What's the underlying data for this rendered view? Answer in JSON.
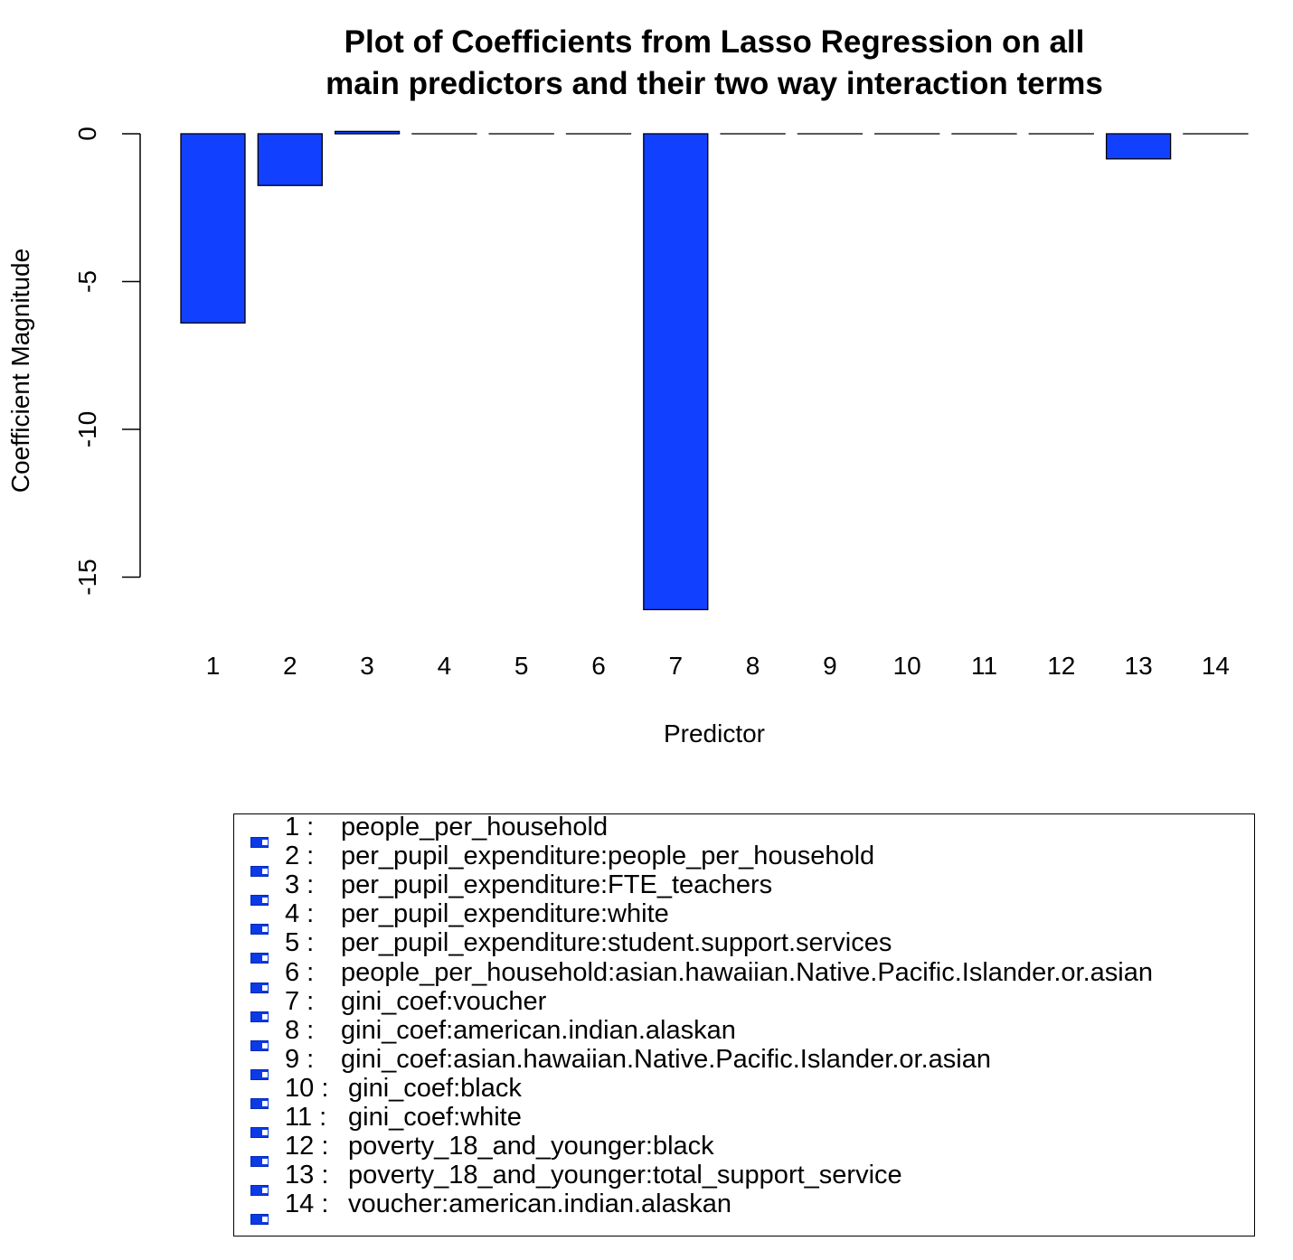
{
  "chart_data": {
    "type": "bar",
    "title_line1": "Plot of Coefficients from Lasso Regression on all",
    "title_line2": "main predictors and their two way interaction terms",
    "xlabel": "Predictor",
    "ylabel": "Coefficient Magnitude",
    "ylim": [
      -16,
      0
    ],
    "yticks": [
      0,
      -5,
      -10,
      -15
    ],
    "ytick_labels": [
      "0",
      "-5",
      "-10",
      "-15"
    ],
    "categories": [
      "1",
      "2",
      "3",
      "4",
      "5",
      "6",
      "7",
      "8",
      "9",
      "10",
      "11",
      "12",
      "13",
      "14"
    ],
    "values": [
      -6.4,
      -1.75,
      0.08,
      0,
      0,
      0,
      -16.1,
      0,
      0,
      0,
      0,
      0,
      -0.85,
      0
    ],
    "bar_color": "#1140ff",
    "legend_position": "bottom",
    "legend": [
      {
        "num": "1 :",
        "label": "people_per_household"
      },
      {
        "num": "2 :",
        "label": "per_pupil_expenditure:people_per_household"
      },
      {
        "num": "3 :",
        "label": "per_pupil_expenditure:FTE_teachers"
      },
      {
        "num": "4 :",
        "label": "per_pupil_expenditure:white"
      },
      {
        "num": "5 :",
        "label": "per_pupil_expenditure:student.support.services"
      },
      {
        "num": "6 :",
        "label": "people_per_household:asian.hawaiian.Native.Pacific.Islander.or.asian"
      },
      {
        "num": "7 :",
        "label": "gini_coef:voucher"
      },
      {
        "num": "8 :",
        "label": "gini_coef:american.indian.alaskan"
      },
      {
        "num": "9 :",
        "label": "gini_coef:asian.hawaiian.Native.Pacific.Islander.or.asian"
      },
      {
        "num": "10 :",
        "label": "gini_coef:black"
      },
      {
        "num": "11 :",
        "label": "gini_coef:white"
      },
      {
        "num": "12 :",
        "label": "poverty_18_and_younger:black"
      },
      {
        "num": "13 :",
        "label": "poverty_18_and_younger:total_support_service"
      },
      {
        "num": "14 :",
        "label": "voucher:american.indian.alaskan"
      }
    ]
  }
}
